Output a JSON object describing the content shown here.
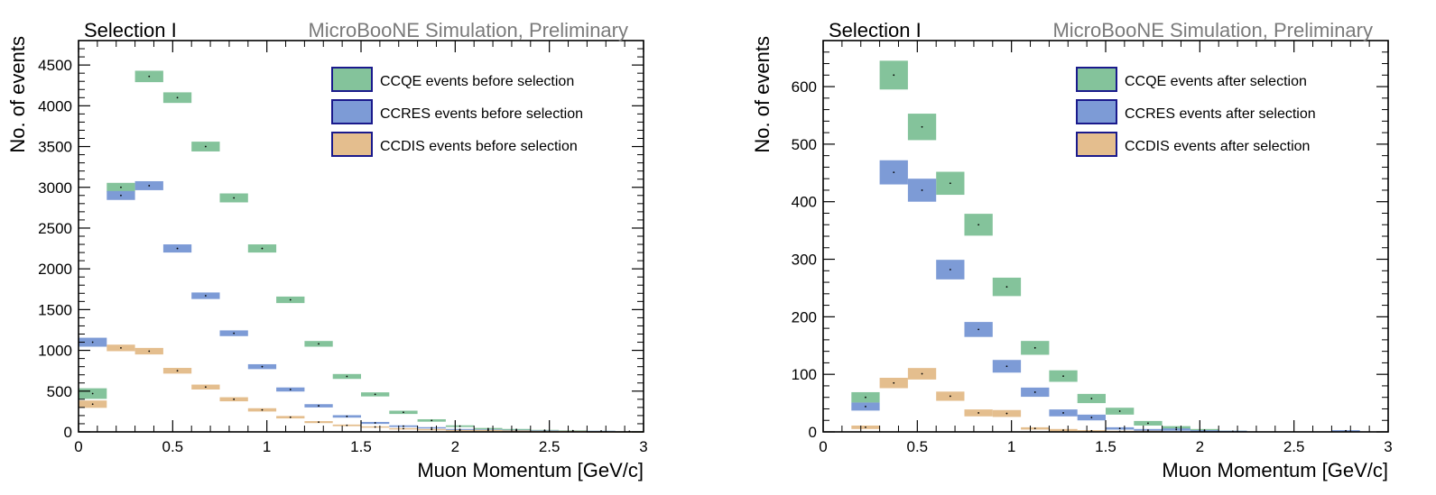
{
  "chart_data": [
    {
      "type": "bar",
      "style": "error-box histogram",
      "header_left": "Selection I",
      "header_right": "MicroBooNE Simulation, Preliminary",
      "xlabel": "Muon Momentum [GeV/c]",
      "ylabel": "No. of events",
      "xlim": [
        0,
        3
      ],
      "ylim": [
        0,
        4800
      ],
      "xticks": [
        {
          "v": 0,
          "label": "0"
        },
        {
          "v": 0.5,
          "label": "0.5"
        },
        {
          "v": 1,
          "label": "1"
        },
        {
          "v": 1.5,
          "label": "1.5"
        },
        {
          "v": 2,
          "label": "2"
        },
        {
          "v": 2.5,
          "label": "2.5"
        },
        {
          "v": 3,
          "label": "3"
        }
      ],
      "yticks": [
        {
          "v": 0,
          "label": "0"
        },
        {
          "v": 500,
          "label": "500"
        },
        {
          "v": 1000,
          "label": "1000"
        },
        {
          "v": 1500,
          "label": "1500"
        },
        {
          "v": 2000,
          "label": "2000"
        },
        {
          "v": 2500,
          "label": "2500"
        },
        {
          "v": 3000,
          "label": "3000"
        },
        {
          "v": 3500,
          "label": "3500"
        },
        {
          "v": 4000,
          "label": "4000"
        },
        {
          "v": 4500,
          "label": "4500"
        }
      ],
      "x": [
        0.075,
        0.225,
        0.375,
        0.525,
        0.675,
        0.825,
        0.975,
        1.125,
        1.275,
        1.425,
        1.575,
        1.725,
        1.875,
        2.025,
        2.175,
        2.325,
        2.475,
        2.625,
        2.775,
        2.925
      ],
      "bin_width": 0.15,
      "legend_position": "top-right",
      "series": [
        {
          "name": "CCQE events before selection",
          "color": "#84c39b",
          "values": [
            470,
            3000,
            4360,
            4100,
            3500,
            2870,
            2250,
            1620,
            1080,
            680,
            460,
            240,
            140,
            70,
            40,
            30,
            20,
            15,
            10,
            5
          ],
          "errors": [
            65,
            55,
            70,
            65,
            60,
            55,
            50,
            40,
            35,
            30,
            25,
            20,
            15,
            10,
            8,
            6,
            5,
            4,
            3,
            2
          ]
        },
        {
          "name": "CCRES events before selection",
          "color": "#7d9bd6",
          "values": [
            1100,
            2900,
            3020,
            2250,
            1670,
            1210,
            800,
            520,
            320,
            190,
            110,
            70,
            50,
            30,
            25,
            20,
            15,
            10,
            10,
            5
          ],
          "errors": [
            55,
            55,
            55,
            50,
            40,
            35,
            30,
            25,
            20,
            15,
            12,
            10,
            8,
            6,
            5,
            4,
            4,
            3,
            3,
            2
          ]
        },
        {
          "name": "CCDIS events before selection",
          "color": "#e4be8e",
          "values": [
            340,
            1030,
            990,
            750,
            550,
            400,
            270,
            180,
            120,
            80,
            60,
            40,
            30,
            20,
            20,
            15,
            10,
            10,
            5,
            5
          ],
          "errors": [
            45,
            40,
            40,
            35,
            30,
            25,
            20,
            15,
            12,
            10,
            8,
            6,
            5,
            4,
            4,
            3,
            3,
            3,
            2,
            2
          ]
        }
      ],
      "point_marker": "dot"
    },
    {
      "type": "bar",
      "style": "error-box histogram",
      "header_left": "Selection I",
      "header_right": "MicroBooNE Simulation, Preliminary",
      "xlabel": "Muon Momentum [GeV/c]",
      "ylabel": "No. of events",
      "xlim": [
        0,
        3
      ],
      "ylim": [
        0,
        680
      ],
      "xticks": [
        {
          "v": 0,
          "label": "0"
        },
        {
          "v": 0.5,
          "label": "0.5"
        },
        {
          "v": 1,
          "label": "1"
        },
        {
          "v": 1.5,
          "label": "1.5"
        },
        {
          "v": 2,
          "label": "2"
        },
        {
          "v": 2.5,
          "label": "2.5"
        },
        {
          "v": 3,
          "label": "3"
        }
      ],
      "yticks": [
        {
          "v": 0,
          "label": "0"
        },
        {
          "v": 100,
          "label": "100"
        },
        {
          "v": 200,
          "label": "200"
        },
        {
          "v": 300,
          "label": "300"
        },
        {
          "v": 400,
          "label": "400"
        },
        {
          "v": 500,
          "label": "500"
        },
        {
          "v": 600,
          "label": "600"
        }
      ],
      "x": [
        0.075,
        0.225,
        0.375,
        0.525,
        0.675,
        0.825,
        0.975,
        1.125,
        1.275,
        1.425,
        1.575,
        1.725,
        1.875,
        2.025,
        2.175,
        2.325,
        2.475,
        2.625,
        2.775,
        2.925
      ],
      "bin_width": 0.15,
      "legend_position": "top-right",
      "series": [
        {
          "name": "CCQE events after selection",
          "color": "#84c39b",
          "values": [
            0,
            60,
            620,
            530,
            432,
            360,
            252,
            146,
            97,
            58,
            36,
            15,
            7,
            3,
            1,
            0,
            0,
            0,
            0,
            0
          ],
          "errors": [
            0,
            9,
            25,
            23,
            20,
            19,
            16,
            12,
            10,
            8,
            6,
            4,
            3,
            2,
            1,
            0,
            0,
            0,
            0,
            0
          ]
        },
        {
          "name": "CCRES events after selection",
          "color": "#7d9bd6",
          "values": [
            0,
            44,
            451,
            420,
            282,
            178,
            114,
            69,
            33,
            25,
            6,
            3,
            4,
            2,
            1,
            0,
            0,
            0,
            2,
            0
          ],
          "errors": [
            0,
            7,
            21,
            20,
            17,
            13,
            11,
            8,
            6,
            5,
            2,
            2,
            2,
            1,
            1,
            0,
            0,
            0,
            1,
            0
          ]
        },
        {
          "name": "CCDIS events after selection",
          "color": "#e4be8e",
          "values": [
            0,
            8,
            85,
            101,
            62,
            33,
            32,
            6,
            3,
            2,
            1,
            1,
            0,
            0,
            0,
            0,
            0,
            0,
            0,
            0
          ],
          "errors": [
            0,
            3,
            9,
            10,
            8,
            6,
            6,
            2,
            2,
            1,
            1,
            1,
            0,
            0,
            0,
            0,
            0,
            0,
            0,
            0
          ]
        }
      ],
      "point_marker": "dot"
    }
  ]
}
